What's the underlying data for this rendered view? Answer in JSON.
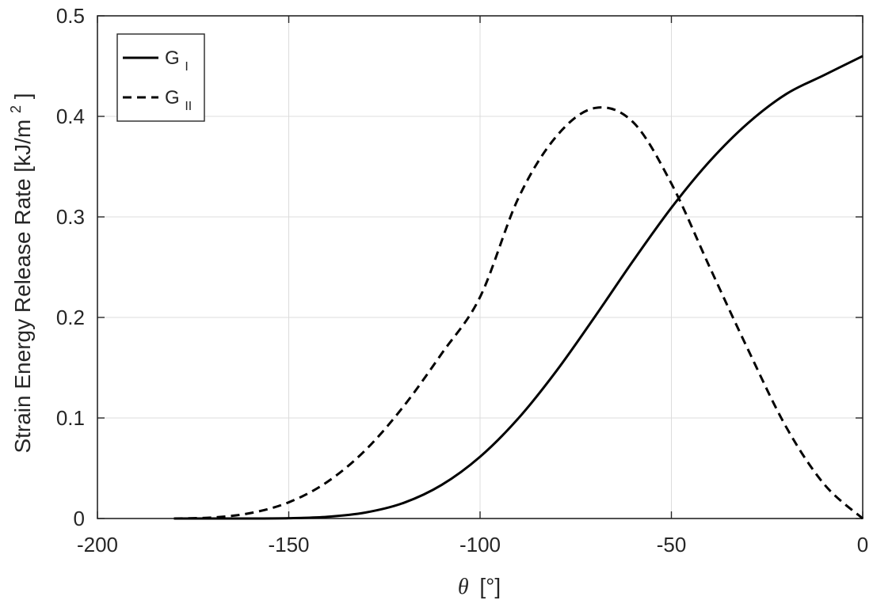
{
  "chart_data": {
    "type": "line",
    "xlabel_symbol": "θ",
    "xlabel_unit": "[°]",
    "ylabel_text": "Strain Energy Release Rate [kJ/m",
    "ylabel_sup": "2",
    "ylabel_close": "]",
    "xlim": [
      -200,
      0
    ],
    "ylim": [
      0,
      0.5
    ],
    "xticks": [
      "-200",
      "-150",
      "-100",
      "-50",
      "0"
    ],
    "yticks": [
      "0",
      "0.1",
      "0.2",
      "0.3",
      "0.4",
      "0.5"
    ],
    "grid": true,
    "legend_position": "top-left",
    "x": [
      -180,
      -170,
      -160,
      -150,
      -140,
      -130,
      -120,
      -110,
      -100,
      -90,
      -80,
      -70,
      -60,
      -50,
      -40,
      -30,
      -20,
      -10,
      0
    ],
    "series": [
      {
        "name_main": "G",
        "name_sub": "I",
        "style": "solid",
        "color": "#000000",
        "values": [
          0.0,
          0.0,
          0.0,
          0.0003,
          0.0017,
          0.0059,
          0.0155,
          0.0335,
          0.0614,
          0.0996,
          0.147,
          0.2007,
          0.2563,
          0.3091,
          0.3553,
          0.3932,
          0.4222,
          0.4412,
          0.46
        ]
      },
      {
        "name_main": "G",
        "name_sub": "II",
        "style": "dashed",
        "color": "#000000",
        "values": [
          0.0,
          0.001,
          0.0054,
          0.0161,
          0.0362,
          0.0679,
          0.1115,
          0.1642,
          0.2203,
          0.3186,
          0.3804,
          0.4083,
          0.3942,
          0.3332,
          0.2501,
          0.1683,
          0.091,
          0.0338,
          0.0
        ]
      }
    ]
  }
}
